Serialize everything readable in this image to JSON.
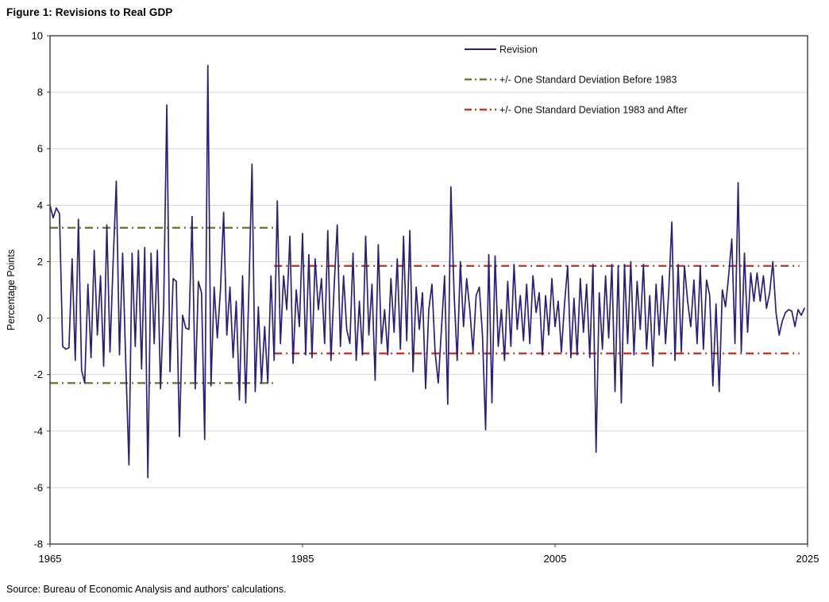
{
  "page": {
    "title": "Figure 1: Revisions to Real GDP",
    "source": "Source: Bureau of Economic Analysis and authors' calculations."
  },
  "chart_data": {
    "type": "line",
    "title": "Figure 1: Revisions to Real GDP",
    "xlabel": "",
    "ylabel": "Percentage Points",
    "ylim": [
      -8,
      10
    ],
    "y_ticks": [
      -8,
      -6,
      -4,
      -2,
      0,
      2,
      4,
      6,
      8,
      10
    ],
    "xlim": [
      1965,
      2025
    ],
    "x_ticks": [
      1965,
      1985,
      2005,
      2025
    ],
    "grid": "horizontal",
    "grid_color": "#D6D6D6",
    "border_color": "#3B3B3B",
    "legend_position": "top-right-inside",
    "legend": [
      {
        "label": "Revision",
        "color": "#2B2173",
        "style": "solid"
      },
      {
        "label": "+/- One Standard Deviation Before 1983",
        "color": "#6E7B2D",
        "style": "dashdot"
      },
      {
        "label": "+/- One Standard Deviation 1983 and After",
        "color": "#C0392B",
        "style": "dashdot"
      }
    ],
    "series": [
      {
        "name": "Revision",
        "color": "#2B2173",
        "style": "solid",
        "start_year": 1965,
        "frequency": "quarterly",
        "values": [
          4.0,
          3.55,
          3.9,
          3.7,
          -1.0,
          -1.1,
          -1.05,
          2.1,
          -1.5,
          3.5,
          -1.85,
          -2.3,
          1.2,
          -1.4,
          2.4,
          -0.6,
          1.5,
          -1.7,
          3.3,
          -1.2,
          2.0,
          4.85,
          -1.3,
          2.3,
          -1.6,
          -5.2,
          2.3,
          -1.0,
          2.4,
          -1.8,
          2.5,
          -5.65,
          2.3,
          -0.9,
          2.4,
          -2.5,
          0.4,
          7.55,
          -1.9,
          1.4,
          1.3,
          -4.2,
          0.1,
          -0.35,
          -0.4,
          3.6,
          -2.5,
          1.3,
          0.9,
          -4.3,
          8.95,
          -2.4,
          1.1,
          -0.7,
          1.0,
          3.75,
          -0.6,
          1.1,
          -1.4,
          0.6,
          -2.9,
          1.5,
          -3.0,
          1.0,
          5.45,
          -2.6,
          0.4,
          -2.3,
          -0.3,
          -2.3,
          1.5,
          -1.5,
          4.15,
          -0.9,
          1.5,
          0.3,
          2.9,
          -1.6,
          1.0,
          -0.3,
          3.0,
          -1.3,
          2.25,
          -1.4,
          2.1,
          0.3,
          1.4,
          -0.9,
          3.1,
          -1.5,
          1.1,
          3.3,
          -1.0,
          1.5,
          -0.4,
          -0.9,
          2.3,
          -1.5,
          0.6,
          -1.3,
          2.9,
          -0.6,
          1.2,
          -2.2,
          2.6,
          -0.9,
          0.3,
          -1.3,
          1.4,
          -0.5,
          2.1,
          -1.1,
          2.9,
          -0.8,
          3.1,
          -1.9,
          1.1,
          -0.4,
          0.9,
          -2.5,
          0.3,
          1.2,
          -1.2,
          -2.3,
          -0.4,
          1.5,
          -3.05,
          4.65,
          0.9,
          -1.5,
          2.0,
          -0.3,
          1.4,
          0.3,
          -1.2,
          0.8,
          1.1,
          -0.6,
          -3.95,
          2.25,
          -3.0,
          2.2,
          -1.0,
          0.3,
          -1.5,
          1.3,
          -1.0,
          1.9,
          -0.4,
          0.8,
          -0.8,
          1.2,
          -0.9,
          1.5,
          0.2,
          0.9,
          -1.3,
          0.8,
          -0.6,
          1.4,
          -0.3,
          0.6,
          -1.2,
          0.5,
          1.85,
          -1.4,
          0.7,
          -1.3,
          1.4,
          -0.5,
          1.2,
          -1.4,
          1.9,
          -4.75,
          0.9,
          -1.1,
          1.5,
          -0.7,
          1.9,
          -2.6,
          1.85,
          -3.0,
          1.9,
          -0.9,
          2.0,
          -1.3,
          1.3,
          -0.4,
          1.9,
          -1.1,
          0.8,
          -1.7,
          1.2,
          -0.6,
          1.5,
          -0.9,
          0.9,
          3.4,
          -1.5,
          1.9,
          -1.2,
          1.85,
          0.6,
          -0.3,
          1.35,
          -0.9,
          1.85,
          -1.1,
          1.35,
          0.8,
          -2.4,
          0.5,
          -2.6,
          1.0,
          0.4,
          1.5,
          2.8,
          -0.9,
          4.8,
          -1.2,
          2.3,
          -0.5,
          1.6,
          0.6,
          1.6,
          0.6,
          1.5,
          0.35,
          0.9,
          2.0,
          0.2,
          -0.6,
          -0.1,
          0.2,
          0.3,
          0.25,
          -0.3,
          0.3,
          0.1,
          0.35
        ]
      }
    ],
    "sd_bands": [
      {
        "name": "+/- One Standard Deviation Before 1983",
        "color": "#6E7B2D",
        "style": "dashdot",
        "from_year": 1965,
        "to_year": 1982.75,
        "upper": 3.2,
        "lower": -2.3
      },
      {
        "name": "+/- One Standard Deviation 1983 and After",
        "color": "#C0392B",
        "style": "dashdot",
        "from_year": 1982.75,
        "to_year": 2024.35,
        "upper": 1.85,
        "lower": -1.25
      }
    ]
  }
}
